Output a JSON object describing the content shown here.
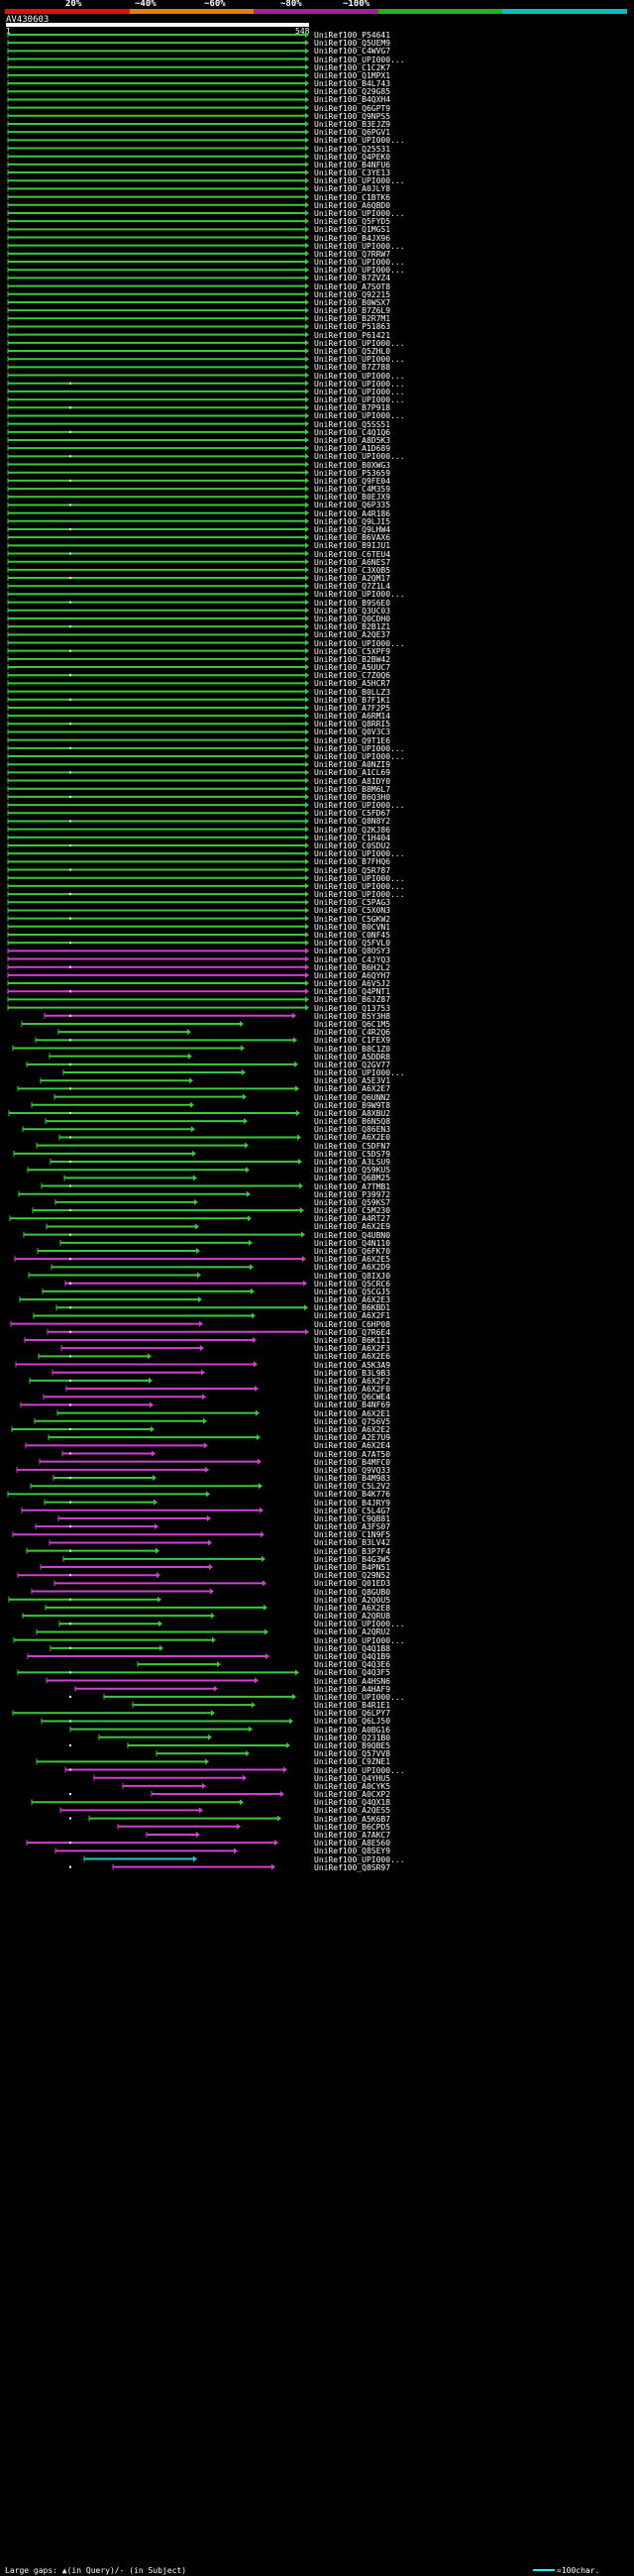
{
  "legend": {
    "segments": [
      {
        "label": "20%",
        "color": "#e01010"
      },
      {
        "label": "~40%",
        "color": "#e08000"
      },
      {
        "label": "~60%",
        "color": "#a020a0"
      },
      {
        "label": "~80%",
        "color": "#20b020"
      },
      {
        "label": "~100%",
        "color": "#00c0c0"
      }
    ]
  },
  "query": {
    "title": "AV430603",
    "start": "1",
    "end": "548"
  },
  "footer": {
    "gaps_text": "Large gaps: ▲(in Query)/- (in Subject)",
    "scale_text": "=100char."
  },
  "hits": [
    {
      "label": "UniRef100_P54641"
    },
    {
      "label": "UniRef100_Q5UEM9"
    },
    {
      "label": "UniRef100_C4WVG7"
    },
    {
      "label": "UniRef100_UPI000..."
    },
    {
      "label": "UniRef100_C1C2K7"
    },
    {
      "label": "UniRef100_Q1MPX1"
    },
    {
      "label": "UniRef100_B4L743"
    },
    {
      "label": "UniRef100_Q29G85"
    },
    {
      "label": "UniRef100_B4QXH4"
    },
    {
      "label": "UniRef100_Q6GPT9"
    },
    {
      "label": "UniRef100_Q9NPS5"
    },
    {
      "label": "UniRef100_B3EJZ9"
    },
    {
      "label": "UniRef100_Q6PGV1"
    },
    {
      "label": "UniRef100_UPI000..."
    },
    {
      "label": "UniRef100_Q25531"
    },
    {
      "label": "UniRef100_Q4PEK0"
    },
    {
      "label": "UniRef100_B4NFU6"
    },
    {
      "label": "UniRef100_C3YE13"
    },
    {
      "label": "UniRef100_UPI000..."
    },
    {
      "label": "UniRef100_A0JLY8"
    },
    {
      "label": "UniRef100_C1BTK6"
    },
    {
      "label": "UniRef100_A6QBD0"
    },
    {
      "label": "UniRef100_UPI000..."
    },
    {
      "label": "UniRef100_Q5FYD5"
    },
    {
      "label": "UniRef100_Q1MGS1"
    },
    {
      "label": "UniRef100_B4JX96"
    },
    {
      "label": "UniRef100_UPI000..."
    },
    {
      "label": "UniRef100_Q7RRW7"
    },
    {
      "label": "UniRef100_UPI000..."
    },
    {
      "label": "UniRef100_UPI000..."
    },
    {
      "label": "UniRef100_B7ZVZ4"
    },
    {
      "label": "UniRef100_A7S0T8"
    },
    {
      "label": "UniRef100_Q92215"
    },
    {
      "label": "UniRef100_B0WSX7"
    },
    {
      "label": "UniRef100_B7Z6L9"
    },
    {
      "label": "UniRef100_B2R7M1"
    },
    {
      "label": "UniRef100_P51863"
    },
    {
      "label": "UniRef100_P61421"
    },
    {
      "label": "UniRef100_UPI000..."
    },
    {
      "label": "UniRef100_Q5ZHL0"
    },
    {
      "label": "UniRef100_UPI000..."
    },
    {
      "label": "UniRef100_B7Z788"
    },
    {
      "label": "UniRef100_UPI000..."
    },
    {
      "label": "UniRef100_UPI000..."
    },
    {
      "label": "UniRef100_UPI000..."
    },
    {
      "label": "UniRef100_UPI000..."
    },
    {
      "label": "UniRef100_B7P918"
    },
    {
      "label": "UniRef100_UPI000..."
    },
    {
      "label": "UniRef100_Q5SS51"
    },
    {
      "label": "UniRef100_C4Q1Q6"
    },
    {
      "label": "UniRef100_A8D5K3"
    },
    {
      "label": "UniRef100_A1D689"
    },
    {
      "label": "UniRef100_UPI000..."
    },
    {
      "label": "UniRef100_B0XWG3"
    },
    {
      "label": "UniRef100_P53659"
    },
    {
      "label": "UniRef100_Q9FE04"
    },
    {
      "label": "UniRef100_C4M359"
    },
    {
      "label": "UniRef100_B0EJX9"
    },
    {
      "label": "UniRef100_Q6P335"
    },
    {
      "label": "UniRef100_A4R186"
    },
    {
      "label": "UniRef100_Q9LJI5"
    },
    {
      "label": "UniRef100_Q9LHW4"
    },
    {
      "label": "UniRef100_B6VAX6"
    },
    {
      "label": "UniRef100_B9IJU1"
    },
    {
      "label": "UniRef100_C6TEU4"
    },
    {
      "label": "UniRef100_A6NES7"
    },
    {
      "label": "UniRef100_C3X0B5"
    },
    {
      "label": "UniRef100_A2QM17"
    },
    {
      "label": "UniRef100_Q7Z1L4"
    },
    {
      "label": "UniRef100_UPI000..."
    },
    {
      "label": "UniRef100_B9S6E0"
    },
    {
      "label": "UniRef100_Q3UC03"
    },
    {
      "label": "UniRef100_Q0CDH0"
    },
    {
      "label": "UniRef100_B2B1Z1"
    },
    {
      "label": "UniRef100_A2QE37"
    },
    {
      "label": "UniRef100_UPI000..."
    },
    {
      "label": "UniRef100_C5XPF9"
    },
    {
      "label": "UniRef100_B2BW42"
    },
    {
      "label": "UniRef100_A5UUC7"
    },
    {
      "label": "UniRef100_C7Z0Q6"
    },
    {
      "label": "UniRef100_A5HCR7"
    },
    {
      "label": "UniRef100_B0LLZ3"
    },
    {
      "label": "UniRef100_B7F1K1"
    },
    {
      "label": "UniRef100_A7F2P5"
    },
    {
      "label": "UniRef100_A6RM14"
    },
    {
      "label": "UniRef100_Q8RRI5"
    },
    {
      "label": "UniRef100_Q0V3C3"
    },
    {
      "label": "UniRef100_Q9T1E6"
    },
    {
      "label": "UniRef100_UPI000..."
    },
    {
      "label": "UniRef100_UPI000..."
    },
    {
      "label": "UniRef100_A0NZI9"
    },
    {
      "label": "UniRef100_A1CL69"
    },
    {
      "label": "UniRef100_A8IDY0"
    },
    {
      "label": "UniRef100_B8M6L7"
    },
    {
      "label": "UniRef100_B6Q3H0"
    },
    {
      "label": "UniRef100_UPI000..."
    },
    {
      "label": "UniRef100_C5FD67"
    },
    {
      "label": "UniRef100_Q8N8Y2"
    },
    {
      "label": "UniRef100_Q2KJ86"
    },
    {
      "label": "UniRef100_C1H404"
    },
    {
      "label": "UniRef100_C0SDU2"
    },
    {
      "label": "UniRef100_UPI000..."
    },
    {
      "label": "UniRef100_B7FHQ6"
    },
    {
      "label": "UniRef100_Q5R787"
    },
    {
      "label": "UniRef100_UPI000..."
    },
    {
      "label": "UniRef100_UPI000..."
    },
    {
      "label": "UniRef100_UPI000..."
    },
    {
      "label": "UniRef100_C5PAG3"
    },
    {
      "label": "UniRef100_C5X0N3"
    },
    {
      "label": "UniRef100_C5GKW2"
    },
    {
      "label": "UniRef100_B0CVN1"
    },
    {
      "label": "UniRef100_C0NF45"
    },
    {
      "label": "UniRef100_Q5FVL0"
    },
    {
      "label": "UniRef100_Q8OSY3"
    },
    {
      "label": "UniRef100_C4JYQ3"
    },
    {
      "label": "UniRef100_B6H2L2"
    },
    {
      "label": "UniRef100_A6QYH7"
    },
    {
      "label": "UniRef100_A6V5J2"
    },
    {
      "label": "UniRef100_Q4PNT1"
    },
    {
      "label": "UniRef100_B6JZ87"
    },
    {
      "label": "UniRef100_Q13753"
    },
    {
      "label": "UniRef100_B5Y3H8"
    },
    {
      "label": "UniRef100_Q6C1M5"
    },
    {
      "label": "UniRef100_C4R2Q6"
    },
    {
      "label": "UniRef100_C1FEX9"
    },
    {
      "label": "UniRef100_B8C1Z0"
    },
    {
      "label": "UniRef100_A5DDR8"
    },
    {
      "label": "UniRef100_Q2GV77"
    },
    {
      "label": "UniRef100_UPI000..."
    },
    {
      "label": "UniRef100_A5E3V1"
    },
    {
      "label": "UniRef100_A6X2E7"
    },
    {
      "label": "UniRef100_Q6UNN2"
    },
    {
      "label": "UniRef100_B9W9T8"
    },
    {
      "label": "UniRef100_A8XBU2"
    },
    {
      "label": "UniRef100_B6N5Q8"
    },
    {
      "label": "UniRef100_Q86EN3"
    },
    {
      "label": "UniRef100_A6X2E0"
    },
    {
      "label": "UniRef100_C5DFN7"
    },
    {
      "label": "UniRef100_C5DS79"
    },
    {
      "label": "UniRef100_A3LSU9"
    },
    {
      "label": "UniRef100_Q59KU5"
    },
    {
      "label": "UniRef100_Q6BM25"
    },
    {
      "label": "UniRef100_A7TMB1"
    },
    {
      "label": "UniRef100_P39972"
    },
    {
      "label": "UniRef100_Q59KS7"
    },
    {
      "label": "UniRef100_C5M230"
    },
    {
      "label": "UniRef100_A4RT27"
    },
    {
      "label": "UniRef100_A6X2E9"
    },
    {
      "label": "UniRef100_Q4UBN0"
    },
    {
      "label": "UniRef100_Q4N110"
    },
    {
      "label": "UniRef100_Q6FK70"
    },
    {
      "label": "UniRef100_A6X2E5"
    },
    {
      "label": "UniRef100_A6X2D9"
    },
    {
      "label": "UniRef100_Q8IXJ0"
    },
    {
      "label": "UniRef100_Q5CRC6"
    },
    {
      "label": "UniRef100_Q5CGJ5"
    },
    {
      "label": "UniRef100_A6X2E3"
    },
    {
      "label": "UniRef100_B6KBD1"
    },
    {
      "label": "UniRef100_A6X2F1"
    },
    {
      "label": "UniRef100_C6HP08"
    },
    {
      "label": "UniRef100_Q7R6E4"
    },
    {
      "label": "UniRef100_B6KI11"
    },
    {
      "label": "UniRef100_A6X2F3"
    },
    {
      "label": "UniRef100_A6X2E6"
    },
    {
      "label": "UniRef100_A5K3A9"
    },
    {
      "label": "UniRef100_B3L9B3"
    },
    {
      "label": "UniRef100_A6X2F2"
    },
    {
      "label": "UniRef100_A6X2F0"
    },
    {
      "label": "UniRef100_Q6CWE4"
    },
    {
      "label": "UniRef100_B4NF69"
    },
    {
      "label": "UniRef100_A6X2E1"
    },
    {
      "label": "UniRef100_Q756V5"
    },
    {
      "label": "UniRef100_A6X2E2"
    },
    {
      "label": "UniRef100_A2E7U9"
    },
    {
      "label": "UniRef100_A6X2E4"
    },
    {
      "label": "UniRef100_A7AT50"
    },
    {
      "label": "UniRef100_B4MFC0"
    },
    {
      "label": "UniRef100_Q9VQ33"
    },
    {
      "label": "UniRef100_B4M983"
    },
    {
      "label": "UniRef100_C5L2V2"
    },
    {
      "label": "UniRef100_B4K776"
    },
    {
      "label": "UniRef100_B4JRY9"
    },
    {
      "label": "UniRef100_C5L4G7"
    },
    {
      "label": "UniRef100_C9QB81"
    },
    {
      "label": "UniRef100_A3FS07"
    },
    {
      "label": "UniRef100_C1N9F5"
    },
    {
      "label": "UniRef100_B3LV42"
    },
    {
      "label": "UniRef100_B3P7F4"
    },
    {
      "label": "UniRef100_B4G3W5"
    },
    {
      "label": "UniRef100_B4PN51"
    },
    {
      "label": "UniRef100_Q29N52"
    },
    {
      "label": "UniRef100_Q01ED3"
    },
    {
      "label": "UniRef100_Q8GUB0"
    },
    {
      "label": "UniRef100_A2Q0U5"
    },
    {
      "label": "UniRef100_A6X2E8"
    },
    {
      "label": "UniRef100_A2QRU8"
    },
    {
      "label": "UniRef100_UPI000..."
    },
    {
      "label": "UniRef100_A2QRU2"
    },
    {
      "label": "UniRef100_UPI000..."
    },
    {
      "label": "UniRef100_Q4Q1B8"
    },
    {
      "label": "UniRef100_Q4Q1B9"
    },
    {
      "label": "UniRef100_Q4Q3E6"
    },
    {
      "label": "UniRef100_Q4Q3F5"
    },
    {
      "label": "UniRef100_A4HSN6"
    },
    {
      "label": "UniRef100_A4HAF9"
    },
    {
      "label": "UniRef100_UPI000..."
    },
    {
      "label": "UniRef100_B4R1E1"
    },
    {
      "label": "UniRef100_Q6LPY7"
    },
    {
      "label": "UniRef100_Q6LJ50"
    },
    {
      "label": "UniRef100_A0BG16"
    },
    {
      "label": "UniRef100_Q231B0"
    },
    {
      "label": "UniRef100_B9QBE5"
    },
    {
      "label": "UniRef100_Q57VV8"
    },
    {
      "label": "UniRef100_C9ZNE1"
    },
    {
      "label": "UniRef100_UPI000..."
    },
    {
      "label": "UniRef100_Q4YHU5"
    },
    {
      "label": "UniRef100_A0CYK5"
    },
    {
      "label": "UniRef100_A0CXP2"
    },
    {
      "label": "UniRef100_Q4QX18"
    },
    {
      "label": "UniRef100_A2QES5"
    },
    {
      "label": "UniRef100_A5K6B7"
    },
    {
      "label": "UniRef100_B6CPD5"
    },
    {
      "label": "UniRef100_A7AKC7"
    },
    {
      "label": "UniRef100_A8E560"
    },
    {
      "label": "UniRef100_Q8SEY9"
    },
    {
      "label": "UniRef100_UPI000..."
    },
    {
      "label": "UniRef100_Q8SR97"
    }
  ]
}
